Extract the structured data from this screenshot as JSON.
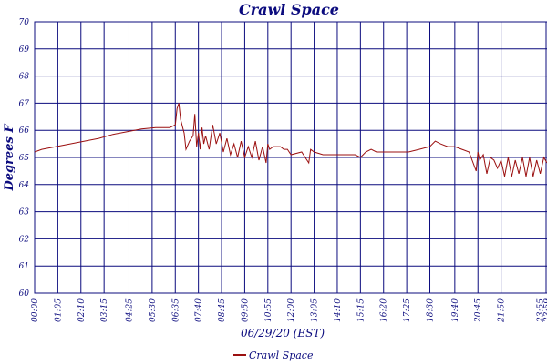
{
  "colors": {
    "grid": "#0b0b7e",
    "series": "#9b1010",
    "text": "#0b0b7e",
    "background": "#ffffff"
  },
  "chart_data": {
    "type": "line",
    "title": "Crawl Space",
    "xlabel": "06/29/20 (EST)",
    "ylabel": "Degrees F",
    "ylim": [
      60,
      70
    ],
    "yticks": [
      60,
      61,
      62,
      63,
      64,
      65,
      66,
      67,
      68,
      69,
      70
    ],
    "xlim": [
      "00:00",
      "23:59"
    ],
    "xtick_labels": [
      "00:00",
      "01:05",
      "02:10",
      "03:15",
      "04:25",
      "05:30",
      "06:35",
      "07:40",
      "08:45",
      "09:50",
      "10:55",
      "12:00",
      "13:05",
      "14:10",
      "15:15",
      "16:20",
      "17:25",
      "18:30",
      "19:40",
      "20:45",
      "21:50",
      "23:59",
      "23:55"
    ],
    "grid": true,
    "legend_position": "bottom",
    "series": [
      {
        "name": "Crawl Space",
        "x": [
          "00:00",
          "00:20",
          "01:00",
          "01:40",
          "02:20",
          "03:00",
          "03:40",
          "04:20",
          "05:00",
          "05:40",
          "06:20",
          "06:35",
          "06:40",
          "06:45",
          "06:50",
          "07:00",
          "07:05",
          "07:15",
          "07:25",
          "07:30",
          "07:35",
          "07:40",
          "07:45",
          "07:50",
          "07:55",
          "08:00",
          "08:10",
          "08:20",
          "08:30",
          "08:40",
          "08:50",
          "09:00",
          "09:10",
          "09:20",
          "09:30",
          "09:40",
          "09:50",
          "10:00",
          "10:10",
          "10:20",
          "10:30",
          "10:40",
          "10:50",
          "10:55",
          "11:00",
          "11:10",
          "11:20",
          "11:30",
          "11:40",
          "11:50",
          "12:00",
          "12:30",
          "12:50",
          "12:55",
          "13:05",
          "13:30",
          "14:00",
          "14:30",
          "15:00",
          "15:15",
          "15:30",
          "15:45",
          "16:00",
          "16:30",
          "17:00",
          "17:30",
          "18:00",
          "18:30",
          "18:45",
          "19:00",
          "19:20",
          "19:40",
          "20:00",
          "20:20",
          "20:40",
          "20:45",
          "20:50",
          "21:00",
          "21:10",
          "21:20",
          "21:30",
          "21:40",
          "21:50",
          "22:00",
          "22:10",
          "22:20",
          "22:30",
          "22:40",
          "22:50",
          "23:00",
          "23:10",
          "23:20",
          "23:30",
          "23:40",
          "23:50",
          "23:59"
        ],
        "values": [
          65.2,
          65.3,
          65.4,
          65.5,
          65.6,
          65.7,
          65.85,
          65.95,
          66.05,
          66.1,
          66.1,
          66.2,
          66.8,
          67.0,
          66.4,
          65.9,
          65.3,
          65.6,
          65.8,
          66.6,
          65.4,
          65.9,
          65.3,
          66.1,
          65.5,
          65.8,
          65.3,
          66.2,
          65.5,
          65.9,
          65.2,
          65.7,
          65.1,
          65.5,
          65.0,
          65.6,
          65.0,
          65.4,
          65.0,
          65.6,
          64.9,
          65.4,
          64.8,
          65.5,
          65.3,
          65.4,
          65.4,
          65.4,
          65.3,
          65.3,
          65.1,
          65.2,
          64.8,
          65.3,
          65.2,
          65.1,
          65.1,
          65.1,
          65.1,
          65.0,
          65.2,
          65.3,
          65.2,
          65.2,
          65.2,
          65.2,
          65.3,
          65.4,
          65.6,
          65.5,
          65.4,
          65.4,
          65.3,
          65.2,
          64.5,
          65.2,
          64.9,
          65.1,
          64.4,
          65.0,
          64.9,
          64.6,
          64.9,
          64.3,
          65.0,
          64.3,
          64.9,
          64.4,
          65.0,
          64.3,
          65.0,
          64.3,
          64.9,
          64.4,
          65.0,
          64.8
        ]
      }
    ]
  }
}
